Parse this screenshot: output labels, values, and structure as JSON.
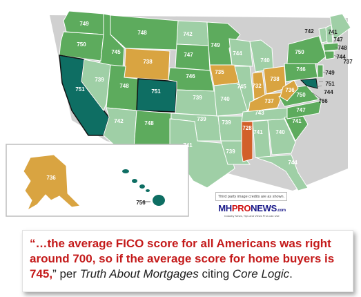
{
  "colors": {
    "high": "#2e8b57",
    "mid": "#5dab5d",
    "low_mid": "#8dbd8a",
    "pale": "#9fcfa6",
    "gold": "#d9a441",
    "orange": "#e0a040",
    "red_orange": "#d2602a",
    "teal": "#0e6e63",
    "inset_border": "#bdbdbd"
  },
  "map": {
    "states": [
      {
        "name": "WA",
        "score": "749"
      },
      {
        "name": "OR",
        "score": "750"
      },
      {
        "name": "CA",
        "score": "751"
      },
      {
        "name": "ID",
        "score": "745"
      },
      {
        "name": "NV",
        "score": "739"
      },
      {
        "name": "MT",
        "score": "748"
      },
      {
        "name": "WY",
        "score": "738"
      },
      {
        "name": "UT",
        "score": "748"
      },
      {
        "name": "AZ",
        "score": "742"
      },
      {
        "name": "CO",
        "score": "751"
      },
      {
        "name": "NM",
        "score": "748"
      },
      {
        "name": "ND",
        "score": "742"
      },
      {
        "name": "SD",
        "score": "747"
      },
      {
        "name": "NE",
        "score": "746"
      },
      {
        "name": "KS",
        "score": "739"
      },
      {
        "name": "OK",
        "score": "739"
      },
      {
        "name": "TX",
        "score": "741"
      },
      {
        "name": "MN",
        "score": "749"
      },
      {
        "name": "IA",
        "score": "735"
      },
      {
        "name": "MO",
        "score": "740"
      },
      {
        "name": "AR",
        "score": "739"
      },
      {
        "name": "LA",
        "score": "739"
      },
      {
        "name": "WI",
        "score": "744"
      },
      {
        "name": "IL",
        "score": "745"
      },
      {
        "name": "MI",
        "score": "740"
      },
      {
        "name": "IN",
        "score": "732"
      },
      {
        "name": "OH",
        "score": "738"
      },
      {
        "name": "KY",
        "score": "737"
      },
      {
        "name": "TN",
        "score": "743"
      },
      {
        "name": "MS",
        "score": "728"
      },
      {
        "name": "AL",
        "score": "741"
      },
      {
        "name": "GA",
        "score": "740"
      },
      {
        "name": "FL",
        "score": "744"
      },
      {
        "name": "SC",
        "score": "741"
      },
      {
        "name": "NC",
        "score": "747"
      },
      {
        "name": "VA",
        "score": "750"
      },
      {
        "name": "WV",
        "score": "736"
      },
      {
        "name": "PA",
        "score": "746"
      },
      {
        "name": "NY",
        "score": "750"
      },
      {
        "name": "VT",
        "score": "742"
      },
      {
        "name": "NH",
        "score": "741"
      },
      {
        "name": "ME",
        "score": "747"
      },
      {
        "name": "MA",
        "score": "748"
      },
      {
        "name": "RI",
        "score": "737"
      },
      {
        "name": "CT",
        "score": "744"
      },
      {
        "name": "NJ",
        "score": "749"
      },
      {
        "name": "DE",
        "score": "751"
      },
      {
        "name": "MD",
        "score": "744"
      },
      {
        "name": "DC",
        "score": "766"
      },
      {
        "name": "AK",
        "score": "736"
      },
      {
        "name": "HI",
        "score": "756"
      }
    ]
  },
  "credit": "Third party image credits are as shown.",
  "logo": {
    "part1": "MH",
    "part2": "PRO",
    "part3": "NEWS",
    "suffix": ".com",
    "tagline": "Industry News, Tips and Views Pros can Use"
  },
  "quote": {
    "open": "“…",
    "highlight": "the average FICO score for all Americans was right around 700, so if the average score for home buyers is 745,",
    "close": "” per ",
    "source": "Truth About Mortgages",
    "mid": " citing ",
    "source2": "Core Logic",
    "end": "."
  }
}
